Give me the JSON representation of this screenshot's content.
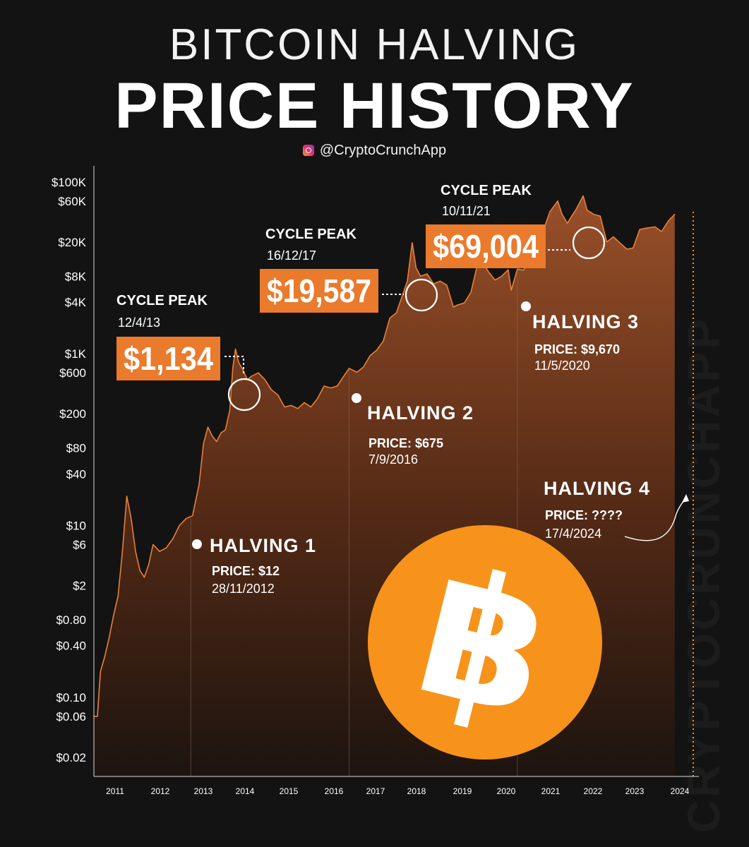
{
  "header": {
    "title_top": "BITCOIN HALVING",
    "title_main": "PRICE HISTORY",
    "handle": "@CryptoCrunchApp"
  },
  "watermark": "CRYPTOCRUNCHAPP",
  "colors": {
    "background": "#141313",
    "accent": "#f7931a",
    "label_box": "#ea7a2c",
    "area_top": "#a0532a",
    "line": "#e8803a"
  },
  "icons": [
    "instagram-icon",
    "bitcoin-logo"
  ],
  "chart_data": {
    "type": "area",
    "y_scale": "log",
    "ylim": [
      0.012,
      140000
    ],
    "xlim": [
      2010.7,
      2024.5
    ],
    "y_ticks": [
      {
        "value": 100000,
        "label": "$100K"
      },
      {
        "value": 60000,
        "label": "$60K"
      },
      {
        "value": 20000,
        "label": "$20K"
      },
      {
        "value": 8000,
        "label": "$8K"
      },
      {
        "value": 4000,
        "label": "$4K"
      },
      {
        "value": 1000,
        "label": "$1K"
      },
      {
        "value": 600,
        "label": "$600"
      },
      {
        "value": 200,
        "label": "$200"
      },
      {
        "value": 80,
        "label": "$80"
      },
      {
        "value": 40,
        "label": "$40"
      },
      {
        "value": 10,
        "label": "$10"
      },
      {
        "value": 6,
        "label": "$6"
      },
      {
        "value": 2,
        "label": "$2"
      },
      {
        "value": 0.8,
        "label": "$0.80"
      },
      {
        "value": 0.4,
        "label": "$0.40"
      },
      {
        "value": 0.1,
        "label": "$0.10"
      },
      {
        "value": 0.06,
        "label": "$0.06"
      },
      {
        "value": 0.02,
        "label": "$0.02"
      }
    ],
    "x_ticks": [
      "2011",
      "2012",
      "2013",
      "2014",
      "2015",
      "2016",
      "2017",
      "2018",
      "2019",
      "2020",
      "2021",
      "2022",
      "2023",
      "2024"
    ],
    "series": [
      {
        "points": [
          [
            2010.7,
            0.06
          ],
          [
            2010.78,
            0.06
          ],
          [
            2010.85,
            0.2
          ],
          [
            2010.95,
            0.3
          ],
          [
            2011.05,
            0.5
          ],
          [
            2011.15,
            0.9
          ],
          [
            2011.25,
            1.5
          ],
          [
            2011.35,
            5
          ],
          [
            2011.45,
            22
          ],
          [
            2011.55,
            12
          ],
          [
            2011.65,
            5
          ],
          [
            2011.75,
            3
          ],
          [
            2011.85,
            2.5
          ],
          [
            2011.95,
            3.5
          ],
          [
            2012.05,
            6
          ],
          [
            2012.2,
            5
          ],
          [
            2012.35,
            5.5
          ],
          [
            2012.5,
            7
          ],
          [
            2012.65,
            10
          ],
          [
            2012.8,
            12
          ],
          [
            2012.95,
            13
          ],
          [
            2013.1,
            30
          ],
          [
            2013.2,
            90
          ],
          [
            2013.3,
            140
          ],
          [
            2013.4,
            110
          ],
          [
            2013.5,
            95
          ],
          [
            2013.6,
            120
          ],
          [
            2013.7,
            130
          ],
          [
            2013.8,
            220
          ],
          [
            2013.87,
            700
          ],
          [
            2013.93,
            1134
          ],
          [
            2014.0,
            800
          ],
          [
            2014.1,
            650
          ],
          [
            2014.2,
            500
          ],
          [
            2014.3,
            550
          ],
          [
            2014.45,
            600
          ],
          [
            2014.6,
            500
          ],
          [
            2014.75,
            380
          ],
          [
            2014.9,
            330
          ],
          [
            2015.05,
            240
          ],
          [
            2015.2,
            250
          ],
          [
            2015.35,
            230
          ],
          [
            2015.5,
            270
          ],
          [
            2015.65,
            240
          ],
          [
            2015.8,
            300
          ],
          [
            2015.95,
            420
          ],
          [
            2016.1,
            400
          ],
          [
            2016.25,
            420
          ],
          [
            2016.4,
            550
          ],
          [
            2016.52,
            675
          ],
          [
            2016.7,
            610
          ],
          [
            2016.85,
            700
          ],
          [
            2017.0,
            950
          ],
          [
            2017.15,
            1100
          ],
          [
            2017.3,
            1400
          ],
          [
            2017.45,
            2600
          ],
          [
            2017.6,
            3000
          ],
          [
            2017.72,
            4500
          ],
          [
            2017.85,
            7000
          ],
          [
            2017.96,
            19587
          ],
          [
            2018.05,
            10000
          ],
          [
            2018.15,
            8000
          ],
          [
            2018.3,
            8500
          ],
          [
            2018.45,
            6500
          ],
          [
            2018.6,
            7000
          ],
          [
            2018.75,
            6300
          ],
          [
            2018.9,
            3500
          ],
          [
            2019.0,
            3700
          ],
          [
            2019.15,
            3900
          ],
          [
            2019.3,
            5200
          ],
          [
            2019.45,
            11000
          ],
          [
            2019.55,
            12000
          ],
          [
            2019.7,
            9000
          ],
          [
            2019.85,
            7200
          ],
          [
            2020.0,
            8000
          ],
          [
            2020.15,
            9500
          ],
          [
            2020.22,
            5500
          ],
          [
            2020.36,
            9670
          ],
          [
            2020.5,
            9400
          ],
          [
            2020.6,
            11500
          ],
          [
            2020.75,
            11000
          ],
          [
            2020.85,
            15000
          ],
          [
            2020.97,
            29000
          ],
          [
            2021.1,
            45000
          ],
          [
            2021.28,
            60000
          ],
          [
            2021.38,
            42000
          ],
          [
            2021.5,
            33000
          ],
          [
            2021.6,
            40000
          ],
          [
            2021.7,
            48000
          ],
          [
            2021.86,
            69004
          ],
          [
            2021.95,
            47000
          ],
          [
            2022.1,
            42000
          ],
          [
            2022.25,
            40000
          ],
          [
            2022.4,
            20000
          ],
          [
            2022.55,
            23000
          ],
          [
            2022.7,
            19500
          ],
          [
            2022.86,
            16500
          ],
          [
            2023.0,
            17000
          ],
          [
            2023.15,
            28000
          ],
          [
            2023.3,
            29000
          ],
          [
            2023.5,
            30000
          ],
          [
            2023.65,
            26500
          ],
          [
            2023.8,
            35000
          ],
          [
            2023.95,
            42000
          ]
        ]
      }
    ],
    "cycle_peaks": [
      {
        "title": "CYCLE PEAK",
        "date": "12/4/13",
        "price": "$1,134",
        "x": 2013.93,
        "y": 1134
      },
      {
        "title": "CYCLE PEAK",
        "date": "16/12/17",
        "price": "$19,587",
        "x": 2017.96,
        "y": 19587
      },
      {
        "title": "CYCLE PEAK",
        "date": "10/11/21",
        "price": "$69,004",
        "x": 2021.86,
        "y": 69004
      }
    ],
    "halvings": [
      {
        "title": "HALVING 1",
        "price": "PRICE: $12",
        "date": "28/11/2012",
        "x": 2012.91,
        "y": 12
      },
      {
        "title": "HALVING 2",
        "price": "PRICE: $675",
        "date": "7/9/2016",
        "x": 2016.52,
        "y": 675
      },
      {
        "title": "HALVING 3",
        "price": "PRICE: $9,670",
        "date": "11/5/2020",
        "x": 2020.36,
        "y": 9670
      },
      {
        "title": "HALVING 4",
        "price": "PRICE: ????",
        "date": "17/4/2024",
        "x": 2024.29
      }
    ]
  }
}
